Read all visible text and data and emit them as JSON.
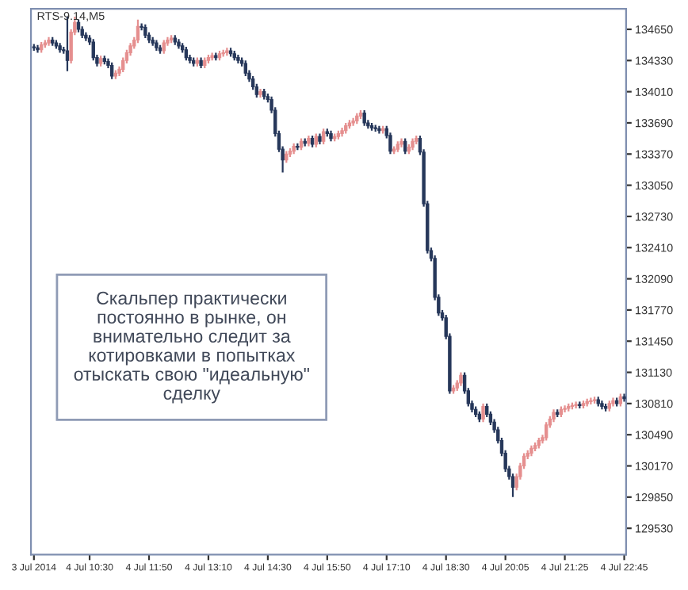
{
  "chart_data": {
    "type": "candlestick",
    "title": "RTS-9.14,M5",
    "annotations": [
      "Скальпер практически\nпостоянно в рынке, он\nвнимательно следит за\nкотировками в попытках\nотыскать свою \"идеальную\"\nсделку"
    ],
    "categories": [
      "3 Jul 2014",
      null,
      null,
      null,
      null,
      null,
      null,
      null,
      null,
      null,
      null,
      null,
      null,
      null,
      null,
      "4 Jul 10:30",
      null,
      null,
      null,
      null,
      null,
      null,
      null,
      null,
      null,
      null,
      null,
      null,
      null,
      null,
      null,
      "4 Jul 11:50",
      null,
      null,
      null,
      null,
      null,
      null,
      null,
      null,
      null,
      null,
      null,
      null,
      null,
      null,
      null,
      "4 Jul 13:10",
      null,
      null,
      null,
      null,
      null,
      null,
      null,
      null,
      null,
      null,
      null,
      null,
      null,
      null,
      null,
      "4 Jul 14:30",
      null,
      null,
      null,
      null,
      null,
      null,
      null,
      null,
      null,
      null,
      null,
      null,
      null,
      null,
      null,
      "4 Jul 15:50",
      null,
      null,
      null,
      null,
      null,
      null,
      null,
      null,
      null,
      null,
      null,
      null,
      null,
      null,
      null,
      "4 Jul 17:10",
      null,
      null,
      null,
      null,
      null,
      null,
      null,
      null,
      null,
      null,
      null,
      null,
      null,
      null,
      null,
      "4 Jul 18:30",
      null,
      null,
      null,
      null,
      null,
      null,
      null,
      null,
      null,
      null,
      null,
      null,
      null,
      null,
      null,
      "4 Jul 20:05",
      null,
      null,
      null,
      null,
      null,
      null,
      null,
      null,
      null,
      null,
      null,
      null,
      null,
      null,
      null,
      "4 Jul 21:25",
      null,
      null,
      null,
      null,
      null,
      null,
      null,
      null,
      null,
      null,
      null,
      null,
      null,
      null,
      null,
      "4 Jul 22:45"
    ],
    "ohlc": [
      [
        134470,
        134500,
        134430,
        134460
      ],
      [
        134460,
        134490,
        134410,
        134440
      ],
      [
        134440,
        134520,
        134410,
        134490
      ],
      [
        134490,
        134540,
        134460,
        134510
      ],
      [
        134510,
        134570,
        134480,
        134540
      ],
      [
        134540,
        134570,
        134480,
        134510
      ],
      [
        134510,
        134540,
        134450,
        134480
      ],
      [
        134480,
        134510,
        134410,
        134440
      ],
      [
        134440,
        134470,
        134400,
        134430
      ],
      [
        134430,
        134780,
        134220,
        134330
      ],
      [
        134330,
        134650,
        134300,
        134620
      ],
      [
        134620,
        134780,
        134590,
        134720
      ],
      [
        134720,
        134750,
        134620,
        134650
      ],
      [
        134650,
        134680,
        134560,
        134590
      ],
      [
        134590,
        134620,
        134530,
        134560
      ],
      [
        134560,
        134590,
        134490,
        134520
      ],
      [
        134520,
        134550,
        134330,
        134360
      ],
      [
        134360,
        134390,
        134270,
        134300
      ],
      [
        134300,
        134380,
        134270,
        134350
      ],
      [
        134350,
        134380,
        134290,
        134320
      ],
      [
        134320,
        134350,
        134250,
        134280
      ],
      [
        134280,
        134310,
        134140,
        134170
      ],
      [
        134170,
        134230,
        134140,
        134200
      ],
      [
        134200,
        134270,
        134170,
        134240
      ],
      [
        134240,
        134360,
        134210,
        134330
      ],
      [
        134330,
        134440,
        134300,
        134410
      ],
      [
        134410,
        134510,
        134380,
        134480
      ],
      [
        134480,
        134570,
        134450,
        134540
      ],
      [
        134540,
        134750,
        134510,
        134680
      ],
      [
        134680,
        134710,
        134640,
        134670
      ],
      [
        134670,
        134700,
        134560,
        134590
      ],
      [
        134590,
        134620,
        134510,
        134540
      ],
      [
        134540,
        134570,
        134480,
        134510
      ],
      [
        134510,
        134540,
        134430,
        134460
      ],
      [
        134460,
        134490,
        134400,
        134430
      ],
      [
        134430,
        134540,
        134400,
        134510
      ],
      [
        134510,
        134570,
        134480,
        134540
      ],
      [
        134540,
        134590,
        134510,
        134560
      ],
      [
        134560,
        134590,
        134490,
        134520
      ],
      [
        134520,
        134550,
        134450,
        134480
      ],
      [
        134480,
        134510,
        134410,
        134440
      ],
      [
        134440,
        134470,
        134330,
        134360
      ],
      [
        134360,
        134390,
        134300,
        134330
      ],
      [
        134330,
        134360,
        134270,
        134300
      ],
      [
        134300,
        134360,
        134270,
        134330
      ],
      [
        134330,
        134360,
        134250,
        134280
      ],
      [
        134280,
        134360,
        134250,
        134330
      ],
      [
        134330,
        134390,
        134300,
        134360
      ],
      [
        134360,
        134410,
        134330,
        134380
      ],
      [
        134380,
        134410,
        134330,
        134360
      ],
      [
        134360,
        134430,
        134330,
        134400
      ],
      [
        134400,
        134440,
        134370,
        134410
      ],
      [
        134410,
        134460,
        134380,
        134430
      ],
      [
        134430,
        134460,
        134370,
        134400
      ],
      [
        134400,
        134430,
        134330,
        134360
      ],
      [
        134360,
        134390,
        134300,
        134330
      ],
      [
        134330,
        134360,
        134270,
        134300
      ],
      [
        134300,
        134330,
        134170,
        134200
      ],
      [
        134200,
        134230,
        134110,
        134140
      ],
      [
        134140,
        134170,
        134030,
        134060
      ],
      [
        134060,
        134090,
        133950,
        133980
      ],
      [
        133980,
        134040,
        133950,
        134010
      ],
      [
        134010,
        134040,
        133930,
        133960
      ],
      [
        133960,
        133990,
        133900,
        133930
      ],
      [
        133930,
        133960,
        133790,
        133820
      ],
      [
        133820,
        133850,
        133550,
        133580
      ],
      [
        133580,
        133610,
        133390,
        133420
      ],
      [
        133420,
        133450,
        133180,
        133310
      ],
      [
        133310,
        133400,
        133280,
        133370
      ],
      [
        133370,
        133430,
        133340,
        133400
      ],
      [
        133400,
        133480,
        133370,
        133450
      ],
      [
        133450,
        133480,
        133410,
        133440
      ],
      [
        133440,
        133530,
        133410,
        133500
      ],
      [
        133500,
        133530,
        133450,
        133480
      ],
      [
        133480,
        133560,
        133450,
        133530
      ],
      [
        133530,
        133560,
        133440,
        133470
      ],
      [
        133470,
        133580,
        133440,
        133550
      ],
      [
        133550,
        133580,
        133470,
        133500
      ],
      [
        133500,
        133630,
        133470,
        133600
      ],
      [
        133600,
        133630,
        133550,
        133580
      ],
      [
        133580,
        133610,
        133500,
        133530
      ],
      [
        133530,
        133580,
        133500,
        133550
      ],
      [
        133550,
        133610,
        133520,
        133580
      ],
      [
        133580,
        133640,
        133550,
        133610
      ],
      [
        133610,
        133690,
        133580,
        133660
      ],
      [
        133660,
        133720,
        133630,
        133690
      ],
      [
        133690,
        133740,
        133660,
        133710
      ],
      [
        133710,
        133790,
        133680,
        133760
      ],
      [
        133760,
        133820,
        133730,
        133790
      ],
      [
        133790,
        133820,
        133660,
        133690
      ],
      [
        133690,
        133720,
        133630,
        133660
      ],
      [
        133660,
        133690,
        133610,
        133640
      ],
      [
        133640,
        133670,
        133600,
        133630
      ],
      [
        133630,
        133660,
        133580,
        133610
      ],
      [
        133610,
        133660,
        133580,
        133630
      ],
      [
        133630,
        133660,
        133530,
        133560
      ],
      [
        133560,
        133590,
        133370,
        133400
      ],
      [
        133400,
        133450,
        133370,
        133420
      ],
      [
        133420,
        133500,
        133390,
        133470
      ],
      [
        133470,
        133530,
        133440,
        133500
      ],
      [
        133500,
        133530,
        133370,
        133400
      ],
      [
        133400,
        133470,
        133370,
        133440
      ],
      [
        133440,
        133530,
        133410,
        133500
      ],
      [
        133500,
        133560,
        133470,
        133530
      ],
      [
        133530,
        133560,
        133360,
        133390
      ],
      [
        133390,
        133420,
        132830,
        132860
      ],
      [
        132860,
        132890,
        132350,
        132380
      ],
      [
        132380,
        132410,
        132270,
        132300
      ],
      [
        132300,
        132330,
        131870,
        131900
      ],
      [
        131900,
        131930,
        131710,
        131740
      ],
      [
        131740,
        131770,
        131660,
        131690
      ],
      [
        131690,
        131720,
        131470,
        131500
      ],
      [
        131500,
        131530,
        130910,
        130940
      ],
      [
        130940,
        131000,
        130910,
        130970
      ],
      [
        130970,
        131050,
        130940,
        131020
      ],
      [
        131020,
        131130,
        130990,
        131100
      ],
      [
        131100,
        131130,
        130910,
        130940
      ],
      [
        130940,
        130970,
        130780,
        130810
      ],
      [
        130810,
        130840,
        130720,
        130750
      ],
      [
        130750,
        130780,
        130670,
        130700
      ],
      [
        130700,
        130730,
        130620,
        130650
      ],
      [
        130650,
        130810,
        130620,
        130780
      ],
      [
        130780,
        130810,
        130670,
        130700
      ],
      [
        130700,
        130730,
        130590,
        130620
      ],
      [
        130620,
        130650,
        130510,
        130540
      ],
      [
        130540,
        130570,
        130400,
        130430
      ],
      [
        130430,
        130460,
        130270,
        130300
      ],
      [
        130300,
        130330,
        130110,
        130140
      ],
      [
        130140,
        130170,
        130030,
        130060
      ],
      [
        130060,
        130090,
        129850,
        129950
      ],
      [
        129950,
        130090,
        129920,
        130060
      ],
      [
        130060,
        130200,
        130030,
        130170
      ],
      [
        130170,
        130300,
        130140,
        130270
      ],
      [
        130270,
        130330,
        130240,
        130300
      ],
      [
        130300,
        130380,
        130270,
        130350
      ],
      [
        130350,
        130410,
        130320,
        130380
      ],
      [
        130380,
        130460,
        130350,
        130430
      ],
      [
        130430,
        130490,
        130400,
        130460
      ],
      [
        130460,
        130620,
        130430,
        130590
      ],
      [
        130590,
        130680,
        130560,
        130650
      ],
      [
        130650,
        130750,
        130620,
        130720
      ],
      [
        130720,
        130750,
        130670,
        130700
      ],
      [
        130700,
        130780,
        130670,
        130750
      ],
      [
        130750,
        130790,
        130720,
        130760
      ],
      [
        130760,
        130810,
        130730,
        130780
      ],
      [
        130780,
        130820,
        130750,
        130790
      ],
      [
        130790,
        130830,
        130760,
        130800
      ],
      [
        130800,
        130830,
        130760,
        130790
      ],
      [
        130790,
        130840,
        130760,
        130810
      ],
      [
        130810,
        130860,
        130780,
        130830
      ],
      [
        130830,
        130870,
        130800,
        130840
      ],
      [
        130840,
        130880,
        130810,
        130850
      ],
      [
        130850,
        130880,
        130780,
        130810
      ],
      [
        130810,
        130840,
        130750,
        130780
      ],
      [
        130780,
        130810,
        130730,
        130760
      ],
      [
        130760,
        130840,
        130730,
        130810
      ],
      [
        130810,
        130870,
        130780,
        130840
      ],
      [
        130840,
        130870,
        130780,
        130810
      ],
      [
        130810,
        130910,
        130780,
        130880
      ],
      [
        130880,
        130910,
        130830,
        130860
      ]
    ],
    "colors": [
      "#26375a",
      "#26375a",
      "#e58f8f",
      "#e58f8f",
      "#e58f8f",
      "#26375a",
      "#26375a",
      "#26375a",
      "#26375a",
      "#26375a",
      "#e58f8f",
      "#e58f8f",
      "#26375a",
      "#26375a",
      "#26375a",
      "#26375a",
      "#26375a",
      "#26375a",
      "#e58f8f",
      "#26375a",
      "#26375a",
      "#26375a",
      "#e58f8f",
      "#e58f8f",
      "#e58f8f",
      "#e58f8f",
      "#e58f8f",
      "#e58f8f",
      "#e58f8f",
      "#26375a",
      "#26375a",
      "#26375a",
      "#26375a",
      "#26375a",
      "#26375a",
      "#e58f8f",
      "#e58f8f",
      "#e58f8f",
      "#26375a",
      "#26375a",
      "#26375a",
      "#26375a",
      "#26375a",
      "#26375a",
      "#e58f8f",
      "#26375a",
      "#e58f8f",
      "#e58f8f",
      "#e58f8f",
      "#26375a",
      "#e58f8f",
      "#e58f8f",
      "#e58f8f",
      "#26375a",
      "#26375a",
      "#26375a",
      "#26375a",
      "#26375a",
      "#26375a",
      "#26375a",
      "#26375a",
      "#e58f8f",
      "#26375a",
      "#26375a",
      "#26375a",
      "#26375a",
      "#26375a",
      "#26375a",
      "#e58f8f",
      "#e58f8f",
      "#e58f8f",
      "#26375a",
      "#e58f8f",
      "#26375a",
      "#e58f8f",
      "#26375a",
      "#e58f8f",
      "#26375a",
      "#e58f8f",
      "#26375a",
      "#26375a",
      "#e58f8f",
      "#e58f8f",
      "#e58f8f",
      "#e58f8f",
      "#e58f8f",
      "#e58f8f",
      "#e58f8f",
      "#e58f8f",
      "#26375a",
      "#26375a",
      "#26375a",
      "#26375a",
      "#26375a",
      "#e58f8f",
      "#26375a",
      "#26375a",
      "#e58f8f",
      "#e58f8f",
      "#e58f8f",
      "#26375a",
      "#e58f8f",
      "#e58f8f",
      "#e58f8f",
      "#26375a",
      "#26375a",
      "#26375a",
      "#26375a",
      "#26375a",
      "#26375a",
      "#26375a",
      "#26375a",
      "#26375a",
      "#e58f8f",
      "#e58f8f",
      "#e58f8f",
      "#26375a",
      "#26375a",
      "#26375a",
      "#26375a",
      "#26375a",
      "#e58f8f",
      "#26375a",
      "#26375a",
      "#26375a",
      "#26375a",
      "#26375a",
      "#26375a",
      "#26375a",
      "#26375a",
      "#e58f8f",
      "#e58f8f",
      "#e58f8f",
      "#e58f8f",
      "#e58f8f",
      "#e58f8f",
      "#e58f8f",
      "#e58f8f",
      "#e58f8f",
      "#e58f8f",
      "#e58f8f",
      "#26375a",
      "#e58f8f",
      "#e58f8f",
      "#e58f8f",
      "#e58f8f",
      "#e58f8f",
      "#26375a",
      "#e58f8f",
      "#e58f8f",
      "#e58f8f",
      "#e58f8f",
      "#26375a",
      "#26375a",
      "#26375a",
      "#e58f8f",
      "#e58f8f",
      "#26375a",
      "#e58f8f",
      "#26375a"
    ],
    "ylim": [
      129260,
      134860
    ],
    "yticks": [
      129530,
      129850,
      130170,
      130490,
      130810,
      131130,
      131450,
      131770,
      132090,
      132410,
      132730,
      133050,
      133370,
      133690,
      134010,
      134330,
      134650
    ],
    "grid": false
  }
}
